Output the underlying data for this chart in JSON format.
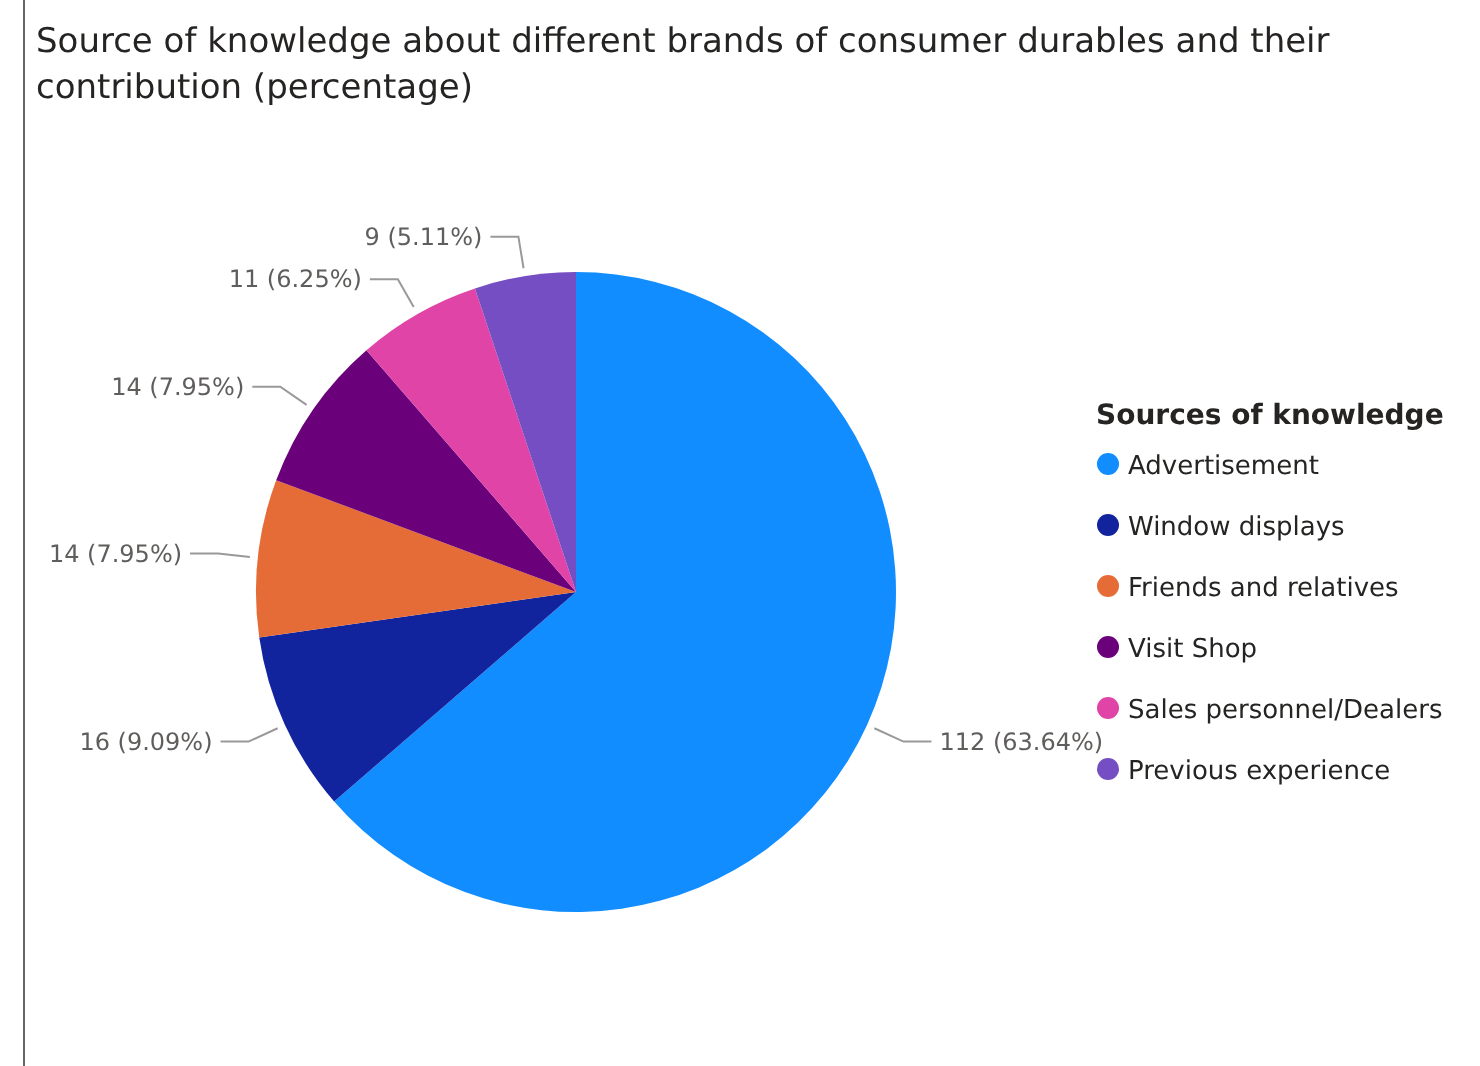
{
  "chart_data": {
    "type": "pie",
    "title": "Source of knowledge about different brands of consumer durables and their contribution (percentage)",
    "legend_title": "Sources of knowledge",
    "legend": "right",
    "categories": [
      "Advertisement",
      "Window displays",
      "Friends and relatives",
      "Visit Shop",
      "Sales personnel/Dealers",
      "Previous experience"
    ],
    "values": [
      112,
      16,
      14,
      14,
      11,
      9
    ],
    "colors": [
      "#118dff",
      "#12239e",
      "#e66c37",
      "#6b007b",
      "#e044a7",
      "#744ec2"
    ],
    "value_labels": [
      "112 (63.64%)",
      "16 (9.09%)",
      "14 (7.95%)",
      "14 (7.95%)",
      "11 (6.25%)",
      "9 (5.11%)"
    ]
  }
}
